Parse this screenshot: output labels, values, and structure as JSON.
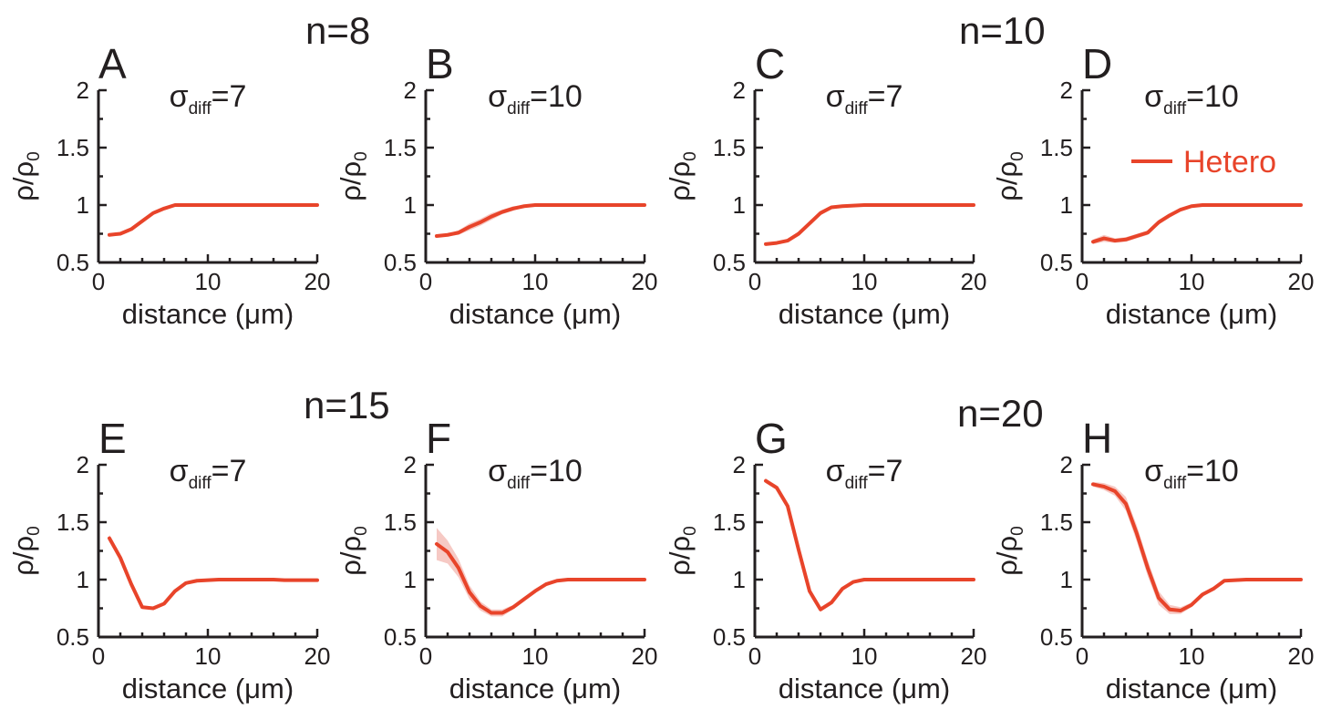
{
  "colors": {
    "line": "#e8442a",
    "band": "#f6c9c4",
    "axis": "#231f20"
  },
  "groups": [
    {
      "label": "n=8"
    },
    {
      "label": "n=10"
    },
    {
      "label": "n=15"
    },
    {
      "label": "n=20"
    }
  ],
  "legend": {
    "label": "Hetero"
  },
  "chart_data": [
    {
      "type": "line",
      "letter": "A",
      "group": "n=8",
      "sigma_base": "σ",
      "sigma_sub": "diff",
      "sigma_value": "=7",
      "xlabel": "distance (μm)",
      "ylabel": "ρ/ρ₀",
      "ylabel_base": "ρ/ρ",
      "ylabel_sub": "0",
      "xlim": [
        0,
        20
      ],
      "ylim": [
        0.5,
        2
      ],
      "xticks": [
        0,
        10,
        20
      ],
      "yticks": [
        "0.5",
        "1",
        "1.5",
        "2"
      ],
      "series": [
        {
          "x": [
            1,
            2,
            3,
            4,
            5,
            6,
            7,
            8,
            9,
            10,
            11,
            12,
            13,
            14,
            15,
            16,
            17,
            18,
            19,
            20
          ],
          "y": [
            0.74,
            0.75,
            0.79,
            0.86,
            0.93,
            0.97,
            1.0,
            1.0,
            1.0,
            1.0,
            1.0,
            1.0,
            1.0,
            1.0,
            1.0,
            1.0,
            1.0,
            1.0,
            1.0,
            1.0
          ],
          "band": [
            0.01,
            0.01,
            0.01,
            0.01,
            0.01,
            0.01,
            0.01,
            0,
            0,
            0,
            0,
            0,
            0,
            0,
            0,
            0,
            0,
            0,
            0,
            0
          ]
        }
      ]
    },
    {
      "type": "line",
      "letter": "B",
      "group": "n=8",
      "sigma_base": "σ",
      "sigma_sub": "diff",
      "sigma_value": "=10",
      "xlabel": "distance (μm)",
      "ylabel": "ρ/ρ₀",
      "ylabel_base": "ρ/ρ",
      "ylabel_sub": "0",
      "xlim": [
        0,
        20
      ],
      "ylim": [
        0.5,
        2
      ],
      "xticks": [
        0,
        10,
        20
      ],
      "yticks": [
        "0.5",
        "1",
        "1.5",
        "2"
      ],
      "series": [
        {
          "x": [
            1,
            2,
            3,
            4,
            5,
            6,
            7,
            8,
            9,
            10,
            11,
            12,
            13,
            14,
            15,
            16,
            17,
            18,
            19,
            20
          ],
          "y": [
            0.73,
            0.74,
            0.76,
            0.81,
            0.85,
            0.9,
            0.94,
            0.97,
            0.99,
            1.0,
            1.0,
            1.0,
            1.0,
            1.0,
            1.0,
            1.0,
            1.0,
            1.0,
            1.0,
            1.0
          ],
          "band": [
            0.01,
            0.01,
            0.02,
            0.03,
            0.03,
            0.03,
            0.02,
            0.02,
            0.01,
            0.01,
            0,
            0,
            0,
            0,
            0,
            0,
            0,
            0,
            0,
            0
          ]
        }
      ]
    },
    {
      "type": "line",
      "letter": "C",
      "group": "n=10",
      "sigma_base": "σ",
      "sigma_sub": "diff",
      "sigma_value": "=7",
      "xlabel": "distance (μm)",
      "ylabel": "ρ/ρ₀",
      "ylabel_base": "ρ/ρ",
      "ylabel_sub": "0",
      "xlim": [
        0,
        20
      ],
      "ylim": [
        0.5,
        2
      ],
      "xticks": [
        0,
        10,
        20
      ],
      "yticks": [
        "0.5",
        "1",
        "1.5",
        "2"
      ],
      "series": [
        {
          "x": [
            1,
            2,
            3,
            4,
            5,
            6,
            7,
            8,
            9,
            10,
            11,
            12,
            13,
            14,
            15,
            16,
            17,
            18,
            19,
            20
          ],
          "y": [
            0.66,
            0.67,
            0.69,
            0.75,
            0.84,
            0.93,
            0.98,
            0.99,
            0.995,
            1.0,
            1.0,
            1.0,
            1.0,
            1.0,
            1.0,
            1.0,
            1.0,
            1.0,
            1.0,
            1.0
          ],
          "band": [
            0.01,
            0.01,
            0.01,
            0.02,
            0.02,
            0.02,
            0.01,
            0.01,
            0,
            0,
            0,
            0,
            0,
            0,
            0,
            0,
            0,
            0,
            0,
            0
          ]
        }
      ]
    },
    {
      "type": "line",
      "letter": "D",
      "group": "n=10",
      "sigma_base": "σ",
      "sigma_sub": "diff",
      "sigma_value": "=10",
      "xlabel": "distance (μm)",
      "ylabel": "ρ/ρ₀",
      "ylabel_base": "ρ/ρ",
      "ylabel_sub": "0",
      "xlim": [
        0,
        20
      ],
      "ylim": [
        0.5,
        2
      ],
      "xticks": [
        0,
        10,
        20
      ],
      "yticks": [
        "0.5",
        "1",
        "1.5",
        "2"
      ],
      "series": [
        {
          "name": "Hetero",
          "x": [
            1,
            2,
            3,
            4,
            5,
            6,
            7,
            8,
            9,
            10,
            11,
            12,
            13,
            14,
            15,
            16,
            17,
            18,
            19,
            20
          ],
          "y": [
            0.68,
            0.71,
            0.69,
            0.7,
            0.73,
            0.76,
            0.85,
            0.91,
            0.96,
            0.99,
            1.0,
            1.0,
            1.0,
            1.0,
            1.0,
            1.0,
            1.0,
            1.0,
            1.0,
            1.0
          ],
          "band": [
            0.02,
            0.03,
            0.02,
            0.02,
            0.02,
            0.02,
            0.02,
            0.02,
            0.01,
            0.01,
            0,
            0,
            0,
            0,
            0,
            0,
            0,
            0,
            0,
            0
          ]
        }
      ]
    },
    {
      "type": "line",
      "letter": "E",
      "group": "n=15",
      "sigma_base": "σ",
      "sigma_sub": "diff",
      "sigma_value": "=7",
      "xlabel": "distance (μm)",
      "ylabel": "ρ/ρ₀",
      "ylabel_base": "ρ/ρ",
      "ylabel_sub": "0",
      "xlim": [
        0,
        20
      ],
      "ylim": [
        0.5,
        2
      ],
      "xticks": [
        0,
        10,
        20
      ],
      "yticks": [
        "0.5",
        "1",
        "1.5",
        "2"
      ],
      "series": [
        {
          "x": [
            1,
            2,
            3,
            4,
            5,
            6,
            7,
            8,
            9,
            10,
            11,
            12,
            13,
            14,
            15,
            16,
            17,
            18,
            19,
            20
          ],
          "y": [
            1.36,
            1.19,
            0.96,
            0.76,
            0.75,
            0.79,
            0.9,
            0.97,
            0.99,
            0.995,
            1.0,
            1.0,
            1.0,
            1.0,
            1.0,
            1.0,
            0.995,
            0.995,
            0.995,
            0.995
          ],
          "band": [
            0.03,
            0.02,
            0.02,
            0.01,
            0.01,
            0.01,
            0.01,
            0.01,
            0,
            0,
            0,
            0,
            0,
            0,
            0,
            0,
            0,
            0,
            0,
            0
          ]
        }
      ]
    },
    {
      "type": "line",
      "letter": "F",
      "group": "n=15",
      "sigma_base": "σ",
      "sigma_sub": "diff",
      "sigma_value": "=10",
      "xlabel": "distance (μm)",
      "ylabel": "ρ/ρ₀",
      "ylabel_base": "ρ/ρ",
      "ylabel_sub": "0",
      "xlim": [
        0,
        20
      ],
      "ylim": [
        0.5,
        2
      ],
      "xticks": [
        0,
        10,
        20
      ],
      "yticks": [
        "0.5",
        "1",
        "1.5",
        "2"
      ],
      "series": [
        {
          "x": [
            1,
            2,
            3,
            4,
            5,
            6,
            7,
            8,
            9,
            10,
            11,
            12,
            13,
            14,
            15,
            16,
            17,
            18,
            19,
            20
          ],
          "y": [
            1.31,
            1.24,
            1.1,
            0.89,
            0.77,
            0.71,
            0.71,
            0.76,
            0.83,
            0.9,
            0.96,
            0.99,
            1.0,
            1.0,
            1.0,
            1.0,
            1.0,
            1.0,
            1.0,
            1.0
          ],
          "band": [
            0.14,
            0.1,
            0.08,
            0.06,
            0.04,
            0.03,
            0.03,
            0.02,
            0.02,
            0.01,
            0.01,
            0,
            0,
            0,
            0,
            0,
            0,
            0,
            0,
            0
          ]
        }
      ]
    },
    {
      "type": "line",
      "letter": "G",
      "group": "n=20",
      "sigma_base": "σ",
      "sigma_sub": "diff",
      "sigma_value": "=7",
      "xlabel": "distance (μm)",
      "ylabel": "ρ/ρ₀",
      "ylabel_base": "ρ/ρ",
      "ylabel_sub": "0",
      "xlim": [
        0,
        20
      ],
      "ylim": [
        0.5,
        2
      ],
      "xticks": [
        0,
        10,
        20
      ],
      "yticks": [
        "0.5",
        "1",
        "1.5",
        "2"
      ],
      "series": [
        {
          "x": [
            1,
            2,
            3,
            4,
            5,
            6,
            7,
            8,
            9,
            10,
            11,
            12,
            13,
            14,
            15,
            16,
            17,
            18,
            19,
            20
          ],
          "y": [
            1.86,
            1.8,
            1.64,
            1.26,
            0.9,
            0.74,
            0.8,
            0.92,
            0.98,
            1.0,
            1.0,
            1.0,
            1.0,
            1.0,
            1.0,
            1.0,
            1.0,
            1.0,
            1.0,
            1.0
          ],
          "band": [
            0.02,
            0.02,
            0.03,
            0.04,
            0.03,
            0.02,
            0.02,
            0.01,
            0,
            0,
            0,
            0,
            0,
            0,
            0,
            0,
            0,
            0,
            0,
            0
          ]
        }
      ]
    },
    {
      "type": "line",
      "letter": "H",
      "group": "n=20",
      "sigma_base": "σ",
      "sigma_sub": "diff",
      "sigma_value": "=10",
      "xlabel": "distance (μm)",
      "ylabel": "ρ/ρ₀",
      "ylabel_base": "ρ/ρ",
      "ylabel_sub": "0",
      "xlim": [
        0,
        20
      ],
      "ylim": [
        0.5,
        2
      ],
      "xticks": [
        0,
        10,
        20
      ],
      "yticks": [
        "0.5",
        "1",
        "1.5",
        "2"
      ],
      "series": [
        {
          "x": [
            1,
            2,
            3,
            4,
            5,
            6,
            7,
            8,
            9,
            10,
            11,
            12,
            13,
            14,
            15,
            16,
            17,
            18,
            19,
            20
          ],
          "y": [
            1.83,
            1.81,
            1.77,
            1.66,
            1.4,
            1.1,
            0.84,
            0.74,
            0.73,
            0.78,
            0.87,
            0.92,
            0.99,
            0.995,
            1.0,
            1.0,
            1.0,
            1.0,
            1.0,
            1.0
          ],
          "band": [
            0.02,
            0.03,
            0.04,
            0.06,
            0.07,
            0.07,
            0.06,
            0.04,
            0.03,
            0.02,
            0.02,
            0.01,
            0,
            0,
            0,
            0,
            0,
            0,
            0,
            0
          ]
        }
      ]
    }
  ]
}
